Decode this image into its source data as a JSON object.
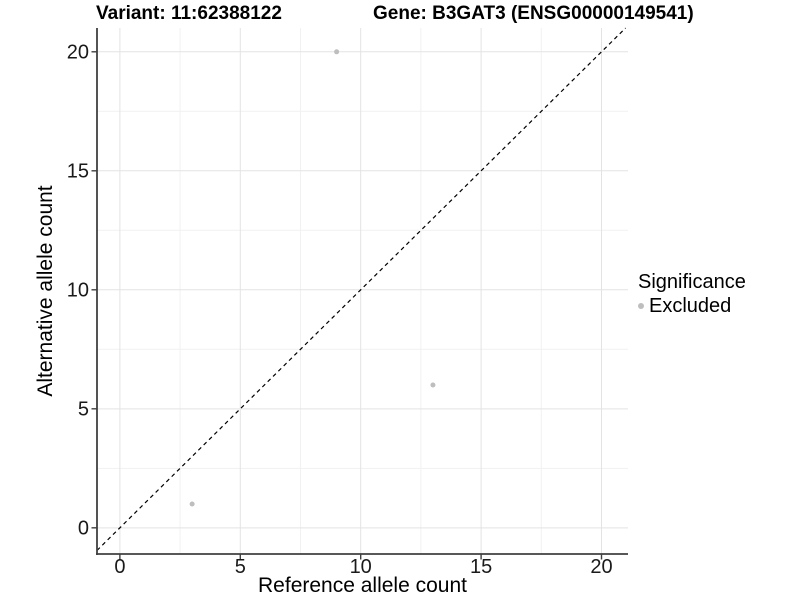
{
  "chart_data": {
    "type": "scatter",
    "title_variant": "Variant: 11:62388122",
    "title_gene": "Gene: B3GAT3 (ENSG00000149541)",
    "xlabel": "Reference allele count",
    "ylabel": "Alternative allele count",
    "xlim": [
      -0.95,
      21.1
    ],
    "ylim": [
      -1.1,
      21.0
    ],
    "x_ticks": [
      0,
      5,
      10,
      15,
      20
    ],
    "y_ticks": [
      0,
      5,
      10,
      15,
      20
    ],
    "x_minor_gridlines": [
      2.5,
      7.5,
      12.5,
      17.5
    ],
    "y_minor_gridlines": [
      2.5,
      7.5,
      12.5,
      17.5
    ],
    "grid": {
      "major": true,
      "minor": true
    },
    "reference_line": {
      "type": "identity",
      "slope": 1,
      "intercept": 0,
      "style": "dashed"
    },
    "series": [
      {
        "name": "Excluded",
        "marker": "circle",
        "color": "#BEBEBE",
        "points": [
          {
            "x": 9,
            "y": 20
          },
          {
            "x": 13,
            "y": 6
          },
          {
            "x": 3,
            "y": 1
          }
        ]
      }
    ],
    "legend": {
      "title": "Significance",
      "position": "right",
      "items": [
        {
          "label": "Excluded",
          "color": "#BEBEBE",
          "marker": "circle"
        }
      ]
    },
    "colors": {
      "background": "#FFFFFF",
      "grid_major": "#E3E3E3",
      "grid_minor": "#F1F1F1",
      "axis_line": "#404040",
      "tick_label": "#1A1A1A",
      "title": "#000000",
      "point": "#BEBEBE",
      "reference_line": "#000000"
    }
  }
}
